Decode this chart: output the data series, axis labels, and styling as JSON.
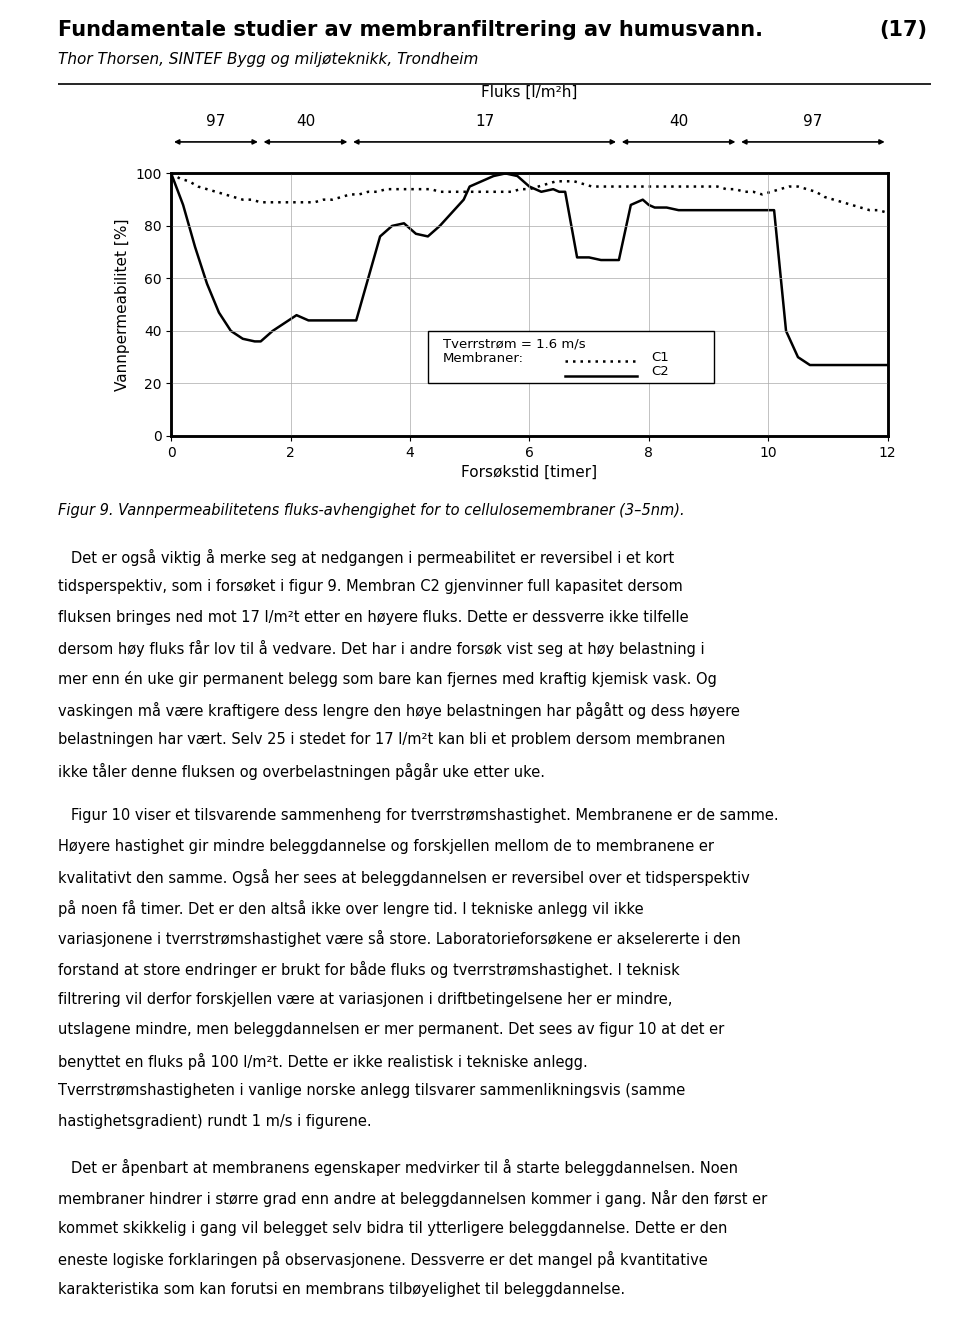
{
  "title": "Fundamentale studier av membranfiltrering av humusvann.",
  "title_number": "(17)",
  "subtitle": "Thor Thorsen, SINTEF Bygg og miljøteknikk, Trondheim",
  "figure_caption": "Figur 9. Vannpermeabilitetens fluks-avhengighet for to cellulosemembraner (3–5nm).",
  "xlabel": "Forsøkstid [timer]",
  "ylabel": "Vannpermeabilitet [%]",
  "flux_label": "Fluks [l/m²h]",
  "flux_segments": [
    97,
    40,
    17,
    40,
    97
  ],
  "flux_boundaries": [
    0,
    1.5,
    3.0,
    7.5,
    9.5,
    12.0
  ],
  "xlim": [
    0,
    12
  ],
  "ylim": [
    0,
    100
  ],
  "xticks": [
    0,
    2,
    4,
    6,
    8,
    10,
    12
  ],
  "yticks": [
    0,
    20,
    40,
    60,
    80,
    100
  ],
  "c1_x": [
    0.0,
    0.15,
    0.3,
    0.45,
    0.6,
    0.75,
    0.9,
    1.05,
    1.2,
    1.35,
    1.5,
    1.65,
    1.8,
    1.95,
    2.1,
    2.25,
    2.4,
    2.55,
    2.7,
    2.85,
    3.0,
    3.15,
    3.3,
    3.45,
    3.6,
    3.75,
    3.9,
    4.05,
    4.2,
    4.35,
    4.5,
    4.65,
    4.8,
    4.95,
    5.1,
    5.25,
    5.4,
    5.55,
    5.7,
    5.85,
    6.0,
    6.15,
    6.3,
    6.45,
    6.6,
    6.75,
    6.9,
    7.05,
    7.2,
    7.35,
    7.5,
    7.65,
    7.8,
    7.95,
    8.1,
    8.25,
    8.4,
    8.55,
    8.7,
    8.85,
    9.0,
    9.15,
    9.3,
    9.45,
    9.6,
    9.75,
    9.9,
    10.05,
    10.2,
    10.35,
    10.5,
    10.65,
    10.8,
    10.95,
    11.1,
    11.25,
    11.4,
    11.55,
    11.7,
    11.85,
    12.0
  ],
  "c1_y": [
    100,
    98,
    97,
    95,
    94,
    93,
    92,
    91,
    90,
    90,
    89,
    89,
    89,
    89,
    89,
    89,
    89,
    90,
    90,
    91,
    92,
    92,
    93,
    93,
    94,
    94,
    94,
    94,
    94,
    94,
    93,
    93,
    93,
    93,
    93,
    93,
    93,
    93,
    93,
    94,
    94,
    95,
    96,
    97,
    97,
    97,
    96,
    95,
    95,
    95,
    95,
    95,
    95,
    95,
    95,
    95,
    95,
    95,
    95,
    95,
    95,
    95,
    94,
    94,
    93,
    93,
    92,
    93,
    94,
    95,
    95,
    94,
    93,
    91,
    90,
    89,
    88,
    87,
    86,
    86,
    85
  ],
  "c2_x": [
    0.0,
    0.2,
    0.4,
    0.6,
    0.8,
    1.0,
    1.2,
    1.4,
    1.5,
    1.7,
    1.9,
    2.1,
    2.3,
    2.5,
    2.7,
    2.9,
    3.1,
    3.3,
    3.5,
    3.7,
    3.9,
    4.1,
    4.3,
    4.5,
    4.7,
    4.9,
    5.0,
    5.2,
    5.4,
    5.6,
    5.8,
    6.0,
    6.2,
    6.4,
    6.5,
    6.6,
    6.8,
    7.0,
    7.2,
    7.4,
    7.5,
    7.7,
    7.9,
    8.0,
    8.1,
    8.3,
    8.5,
    8.7,
    8.9,
    9.1,
    9.3,
    9.5,
    9.7,
    9.9,
    10.1,
    10.3,
    10.5,
    10.7,
    10.9,
    11.1,
    11.3,
    11.5,
    11.7,
    11.9,
    12.0
  ],
  "c2_y": [
    100,
    88,
    72,
    58,
    47,
    40,
    37,
    36,
    36,
    40,
    43,
    46,
    44,
    44,
    44,
    44,
    44,
    60,
    76,
    80,
    81,
    77,
    76,
    80,
    85,
    90,
    95,
    97,
    99,
    100,
    99,
    95,
    93,
    94,
    93,
    93,
    68,
    68,
    67,
    67,
    67,
    88,
    90,
    88,
    87,
    87,
    86,
    86,
    86,
    86,
    86,
    86,
    86,
    86,
    86,
    40,
    30,
    27,
    27,
    27,
    27,
    27,
    27,
    27,
    27
  ],
  "body_paragraphs": [
    "Det er også viktig å merke seg at nedgangen i permeabilitet er reversibel i et kort tidsperspektiv, som i forsøket i figur 9. Membran C2 gjenvinner full kapasitet dersom fluksen bringes ned mot 17 l/m²t etter en høyere fluks. Dette er dessverre ikke tilfelle dersom høy fluks får lov til å vedvare. Det har i andre forsøk vist seg at høy belastning i mer enn én uke gir permanent belegg som bare kan fjernes med kraftig kjemisk vask. Og vaskingen må være kraftigere dess lengre den høye belastningen har pågått og dess høyere belastningen har vært. Selv 25 i stedet for 17 l/m²t kan bli et problem dersom membranen ikke tåler denne fluksen og overbelastningen pågår uke etter uke.",
    "Figur 10 viser et tilsvarende sammenheng for tverrstrømshastighet. Membranene er de samme. Høyere hastighet gir mindre beleggdannelse og forskjellen mellom de to membranene er kvalitativt den samme. Også her sees at beleggdannelsen er reversibel over et tidsperspektiv på noen få timer. Det er den altså ikke over lengre tid. I tekniske anlegg vil ikke variasjonene i tverrstrømshastighet være så store. Laboratorieforsøkene er akselererte i den forstand at store endringer er brukt for både fluks og tverrstrømshastighet. I teknisk filtrering vil derfor forskjellen være at variasjonen i driftbetingelsene her er mindre, utslagene mindre, men beleggdannelsen er mer permanent. Det sees av figur 10 at det er benyttet en fluks på 100 l/m²t. Dette er ikke realistisk i tekniske anlegg. Tverrstrømshastigheten i vanlige norske anlegg tilsvarer sammenlikningsvis (samme hastighetsgradient) rundt 1 m/s i figurene.",
    "Det er åpenbart at membranens egenskaper medvirker til å starte beleggdannelsen. Noen membraner hindrer i større grad enn andre at beleggdannelsen kommer i gang. Når den først er kommet skikkelig i gang vil belegget selv bidra til ytterligere beleggdannelse. Dette er den eneste logiske forklaringen på observasjonene. Dessverre er det mangel på kvantitative karakteristika som kan forutsi en membrans tilbøyelighet til beleggdannelse."
  ],
  "background_color": "#ffffff",
  "grid_color": "#aaaaaa",
  "text_color": "#000000",
  "line_color": "#000000"
}
